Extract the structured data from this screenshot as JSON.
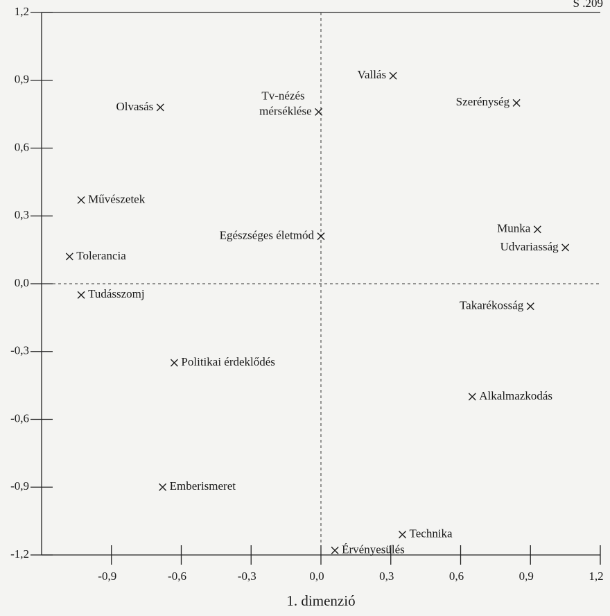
{
  "page_label": "S .209",
  "chart_data": {
    "type": "scatter",
    "xlabel": "1. dimenzió",
    "xlim": [
      -1.2,
      1.2
    ],
    "ylim": [
      -1.2,
      1.2
    ],
    "xticks": [
      {
        "value": -0.9,
        "label": "-0,9"
      },
      {
        "value": -0.6,
        "label": "-0,6"
      },
      {
        "value": -0.3,
        "label": "-0,3"
      },
      {
        "value": 0,
        "label": "0,0"
      },
      {
        "value": 0.3,
        "label": "0,3"
      },
      {
        "value": 0.6,
        "label": "0,6"
      },
      {
        "value": 0.9,
        "label": "0,9"
      },
      {
        "value": 1.2,
        "label": "1,2"
      }
    ],
    "yticks": [
      {
        "value": 1.2,
        "label": "1,2"
      },
      {
        "value": 0.9,
        "label": "0,9"
      },
      {
        "value": 0.6,
        "label": "0,6"
      },
      {
        "value": 0.3,
        "label": "0,3"
      },
      {
        "value": 0,
        "label": "0,0"
      },
      {
        "value": -0.3,
        "label": "-0,3"
      },
      {
        "value": -0.6,
        "label": "-0,6"
      },
      {
        "value": -0.9,
        "label": "-0,9"
      },
      {
        "value": -1.2,
        "label": "-1,2"
      }
    ],
    "color": "#1a1a1a",
    "labels": [
      "Vallás",
      "Olvasás",
      [
        "Tv-nézés",
        "mérséklése"
      ],
      "Szerénység",
      "Művészetek",
      "Munka",
      "Udvariasság",
      "Egészséges életmód",
      "Tolerancia",
      "Tudásszomj",
      "Takarékosság",
      "Politikai érdeklődés",
      "Alkalmazkodás",
      "Emberismeret",
      "Technika",
      "Érvényesülés"
    ],
    "x": [
      0.31,
      -0.69,
      -0.01,
      0.84,
      -1.03,
      0.93,
      1.05,
      0.0,
      -1.08,
      -1.03,
      0.9,
      -0.63,
      0.65,
      -0.68,
      0.35,
      0.06
    ],
    "values": [
      0.92,
      0.78,
      0.76,
      0.8,
      0.37,
      0.24,
      0.16,
      0.21,
      0.12,
      -0.05,
      -0.1,
      -0.35,
      -0.5,
      -0.9,
      -1.11,
      -1.18
    ]
  }
}
